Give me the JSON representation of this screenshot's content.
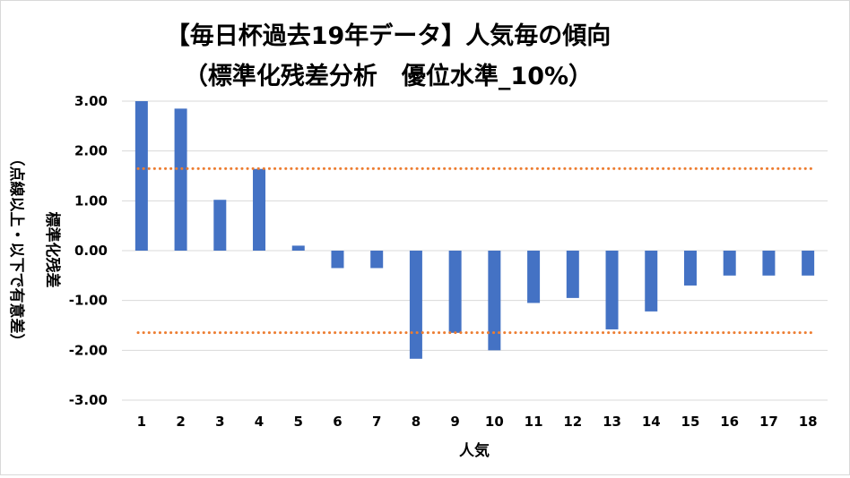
{
  "chart_data": {
    "type": "bar",
    "title": "【毎日杯過去19年データ】人気毎の傾向",
    "subtitle": "（標準化残差分析　優位水準_10%）",
    "xlabel": "人気",
    "ylabel_lines": [
      "標準化残差",
      "（点線以上・以下で有意差）"
    ],
    "categories": [
      "1",
      "2",
      "3",
      "4",
      "5",
      "6",
      "7",
      "8",
      "9",
      "10",
      "11",
      "12",
      "13",
      "14",
      "15",
      "16",
      "17",
      "18"
    ],
    "values": [
      3.0,
      2.85,
      1.02,
      1.64,
      0.1,
      -0.35,
      -0.35,
      -2.17,
      -1.65,
      -2.0,
      -1.05,
      -0.95,
      -1.58,
      -1.22,
      -0.7,
      -0.5,
      -0.5,
      -0.5
    ],
    "ylim": [
      -3.0,
      3.0
    ],
    "yticks": [
      "3.00",
      "2.00",
      "1.00",
      "0.00",
      "-1.00",
      "-2.00",
      "-3.00"
    ],
    "thresholds": [
      1.645,
      -1.645
    ],
    "bar_color": "#4472c4",
    "threshold_color": "#ed7d31",
    "gridline_color": "#d9d9d9",
    "grid": true,
    "legend": false
  }
}
